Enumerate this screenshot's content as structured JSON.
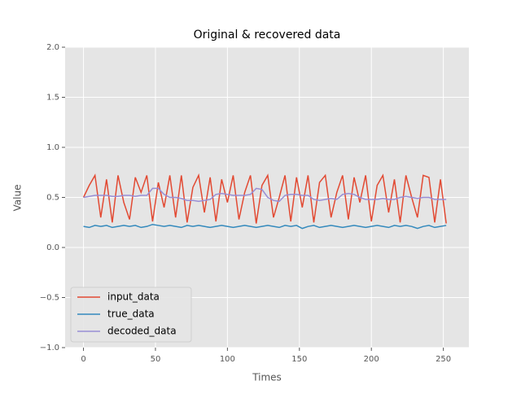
{
  "chart_data": {
    "type": "line",
    "title": "Original & recovered data",
    "x_label": "Times",
    "y_label": "Value",
    "x": [
      0,
      4,
      8,
      12,
      16,
      20,
      24,
      28,
      32,
      36,
      40,
      44,
      48,
      52,
      56,
      60,
      64,
      68,
      72,
      76,
      80,
      84,
      88,
      92,
      96,
      100,
      104,
      108,
      112,
      116,
      120,
      124,
      128,
      132,
      136,
      140,
      144,
      148,
      152,
      156,
      160,
      164,
      168,
      172,
      176,
      180,
      184,
      188,
      192,
      196,
      200,
      204,
      208,
      212,
      216,
      220,
      224,
      228,
      232,
      236,
      240,
      244,
      248,
      252
    ],
    "series": [
      {
        "name": "input_data",
        "color": "#E24A33",
        "values": [
          0.5,
          0.62,
          0.72,
          0.3,
          0.68,
          0.25,
          0.72,
          0.45,
          0.28,
          0.7,
          0.55,
          0.72,
          0.26,
          0.65,
          0.4,
          0.72,
          0.3,
          0.72,
          0.25,
          0.6,
          0.72,
          0.35,
          0.7,
          0.26,
          0.68,
          0.45,
          0.72,
          0.28,
          0.55,
          0.72,
          0.24,
          0.62,
          0.72,
          0.3,
          0.5,
          0.72,
          0.26,
          0.7,
          0.4,
          0.72,
          0.25,
          0.65,
          0.72,
          0.3,
          0.55,
          0.72,
          0.28,
          0.7,
          0.45,
          0.72,
          0.26,
          0.62,
          0.72,
          0.35,
          0.68,
          0.25,
          0.72,
          0.5,
          0.3,
          0.72,
          0.7,
          0.25,
          0.68,
          0.24
        ]
      },
      {
        "name": "true_data",
        "color": "#348ABD",
        "values": [
          0.21,
          0.2,
          0.22,
          0.21,
          0.22,
          0.2,
          0.21,
          0.22,
          0.21,
          0.22,
          0.2,
          0.21,
          0.23,
          0.22,
          0.21,
          0.22,
          0.21,
          0.2,
          0.22,
          0.21,
          0.22,
          0.21,
          0.2,
          0.21,
          0.22,
          0.21,
          0.2,
          0.21,
          0.22,
          0.21,
          0.2,
          0.21,
          0.22,
          0.21,
          0.2,
          0.22,
          0.21,
          0.22,
          0.19,
          0.21,
          0.22,
          0.2,
          0.21,
          0.22,
          0.21,
          0.2,
          0.21,
          0.22,
          0.21,
          0.2,
          0.21,
          0.22,
          0.21,
          0.2,
          0.22,
          0.21,
          0.22,
          0.21,
          0.19,
          0.21,
          0.22,
          0.2,
          0.21,
          0.22
        ]
      },
      {
        "name": "decoded_data",
        "color": "#988ED5",
        "values": [
          0.5,
          0.51,
          0.52,
          0.52,
          0.52,
          0.51,
          0.51,
          0.52,
          0.52,
          0.51,
          0.52,
          0.52,
          0.59,
          0.59,
          0.53,
          0.5,
          0.5,
          0.49,
          0.47,
          0.47,
          0.46,
          0.47,
          0.48,
          0.53,
          0.54,
          0.53,
          0.52,
          0.52,
          0.52,
          0.53,
          0.59,
          0.58,
          0.5,
          0.47,
          0.46,
          0.52,
          0.53,
          0.53,
          0.52,
          0.52,
          0.48,
          0.47,
          0.48,
          0.49,
          0.48,
          0.53,
          0.54,
          0.53,
          0.5,
          0.48,
          0.48,
          0.48,
          0.49,
          0.48,
          0.48,
          0.5,
          0.51,
          0.5,
          0.49,
          0.5,
          0.5,
          0.48,
          0.48,
          0.48
        ]
      }
    ],
    "xlim": [
      -12.75,
      267.75
    ],
    "xticks": [
      0,
      50,
      100,
      150,
      200,
      250
    ],
    "ylim": [
      -1,
      2
    ],
    "yticks": [
      {
        "value": -1,
        "label": "−1.0"
      },
      {
        "value": -0.5,
        "label": "−0.5"
      },
      {
        "value": 0,
        "label": "0.0"
      },
      {
        "value": 0.5,
        "label": "0.5"
      },
      {
        "value": 1,
        "label": "1.0"
      },
      {
        "value": 1.5,
        "label": "1.5"
      },
      {
        "value": 2,
        "label": "2.0"
      }
    ],
    "grid": true,
    "legend": "lower left"
  }
}
